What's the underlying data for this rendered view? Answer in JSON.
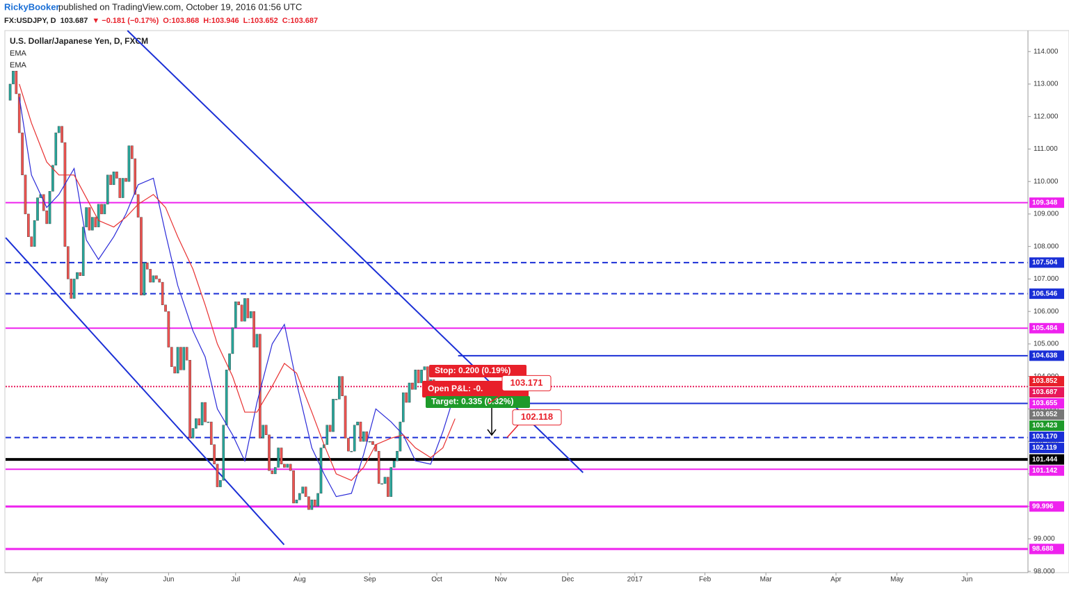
{
  "header": {
    "author": "RickyBooker",
    "published": "published on TradingView.com, October 19, 2016 01:56 UTC"
  },
  "chart_data": {
    "type": "candlestick",
    "symbol_line": {
      "symbol": "FX:USDJPY, D",
      "price": "103.687",
      "change": "▼ −0.181 (−0.17%)",
      "open": "O:103.868",
      "high": "H:103.946",
      "low": "L:103.652",
      "close": "C:103.687"
    },
    "title": "U.S. Dollar/Japanese Yen, D, FXCM",
    "up_color": "#26a69a",
    "down_color": "#ef5350",
    "closes": [
      112.5,
      113.0,
      113.4,
      112.7,
      111.5,
      110.2,
      109.0,
      108.3,
      108.0,
      108.8,
      109.5,
      109.6,
      109.1,
      108.7,
      109.7,
      110.5,
      111.5,
      111.7,
      111.2,
      108.0,
      107.0,
      106.4,
      107.0,
      107.2,
      107.1,
      108.6,
      109.2,
      108.5,
      108.9,
      108.6,
      109.3,
      109.0,
      109.3,
      110.2,
      109.9,
      110.3,
      110.1,
      109.5,
      110.1,
      110.0,
      111.1,
      110.7,
      109.6,
      108.9,
      106.5,
      107.5,
      107.3,
      106.9,
      107.1,
      107.0,
      106.9,
      106.2,
      106.0,
      104.9,
      104.3,
      104.1,
      104.9,
      104.2,
      104.9,
      104.5,
      102.1,
      102.4,
      102.7,
      102.5,
      103.2,
      102.6,
      102.6,
      101.9,
      101.3,
      100.6,
      100.8,
      102.5,
      104.2,
      104.7,
      105.5,
      106.3,
      106.2,
      105.7,
      106.4,
      105.8,
      106.0,
      104.9,
      105.3,
      102.1,
      102.5,
      102.2,
      101.1,
      101.0,
      101.2,
      101.8,
      101.3,
      101.2,
      101.3,
      101.1,
      100.1,
      100.2,
      100.4,
      100.6,
      100.3,
      99.9,
      100.2,
      100.0,
      100.4,
      101.8,
      101.9,
      102.5,
      102.3,
      103.3,
      103.3,
      104.0,
      103.4,
      102.1,
      101.7,
      101.7,
      102.5,
      102.6,
      102.0,
      102.3,
      102.0,
      102.0,
      101.9,
      101.7,
      100.7,
      100.7,
      100.9,
      100.3,
      101.2,
      101.4,
      101.7,
      102.6,
      103.5,
      103.2,
      103.8,
      103.6,
      104.2,
      103.8,
      104.2,
      104.3,
      103.5,
      103.9,
      103.7
    ],
    "emas": [
      {
        "name": "EMA",
        "color": "#2a2ad8",
        "x": [
          4,
          8,
          13,
          17,
          22,
          26,
          30,
          35,
          39,
          43,
          48,
          52,
          56,
          61,
          65,
          69,
          74,
          78,
          82,
          87,
          91,
          95,
          100,
          104,
          108,
          113,
          117,
          121,
          126,
          130,
          134,
          139,
          143,
          147
        ],
        "values": [
          112.6,
          110.2,
          109.2,
          109.6,
          110.4,
          108.2,
          107.6,
          108.3,
          109.0,
          109.9,
          110.1,
          108.4,
          106.8,
          105.4,
          104.6,
          103.0,
          102.2,
          101.4,
          103.2,
          105.0,
          105.6,
          103.8,
          101.8,
          101.0,
          100.3,
          100.4,
          101.6,
          103.0,
          102.6,
          102.2,
          101.4,
          101.3,
          102.3,
          103.5
        ]
      },
      {
        "name": "EMA",
        "color": "#e83030",
        "x": [
          4,
          8,
          13,
          17,
          22,
          26,
          30,
          35,
          39,
          43,
          48,
          52,
          56,
          61,
          65,
          69,
          74,
          78,
          82,
          87,
          91,
          95,
          100,
          104,
          108,
          113,
          117,
          121,
          126,
          130,
          134,
          139,
          143,
          147
        ],
        "values": [
          113.0,
          111.8,
          110.6,
          110.2,
          110.2,
          109.5,
          108.8,
          108.6,
          108.9,
          109.3,
          109.6,
          109.2,
          108.3,
          107.3,
          106.2,
          105.0,
          104.0,
          102.9,
          102.9,
          103.7,
          104.4,
          104.1,
          102.9,
          101.9,
          101.0,
          100.8,
          101.2,
          101.9,
          102.1,
          102.2,
          101.8,
          101.5,
          101.8,
          102.7
        ]
      }
    ],
    "xlim": [
      -0.5,
      335
    ],
    "xticks": [
      {
        "value": 10,
        "label": "Apr"
      },
      {
        "value": 31,
        "label": "May"
      },
      {
        "value": 53,
        "label": "Jun"
      },
      {
        "value": 75,
        "label": "Jul"
      },
      {
        "value": 96,
        "label": "Aug"
      },
      {
        "value": 119,
        "label": "Sep"
      },
      {
        "value": 141,
        "label": "Oct"
      },
      {
        "value": 162,
        "label": "Nov"
      },
      {
        "value": 184,
        "label": "Dec"
      },
      {
        "value": 206,
        "label": "2017"
      },
      {
        "value": 229,
        "label": "Feb"
      },
      {
        "value": 249,
        "label": "Mar"
      },
      {
        "value": 272,
        "label": "Apr"
      },
      {
        "value": 292,
        "label": "May"
      },
      {
        "value": 315,
        "label": "Jun"
      }
    ],
    "ylim": [
      97.96,
      114.646
    ],
    "yticks": [
      {
        "value": 98,
        "label": "98.000"
      },
      {
        "value": 99,
        "label": "99.000"
      },
      {
        "value": 100,
        "label": "100.000"
      },
      {
        "value": 101,
        "label": "101.000"
      },
      {
        "value": 102,
        "label": "102.000"
      },
      {
        "value": 103,
        "label": "103.000"
      },
      {
        "value": 104,
        "label": "104.000"
      },
      {
        "value": 105,
        "label": "105.000"
      },
      {
        "value": 106,
        "label": "106.000"
      },
      {
        "value": 107,
        "label": "107.000"
      },
      {
        "value": 108,
        "label": "108.000"
      },
      {
        "value": 109,
        "label": "109.000"
      },
      {
        "value": 110,
        "label": "110.000"
      },
      {
        "value": 111,
        "label": "111.000"
      },
      {
        "value": 112,
        "label": "112.000"
      },
      {
        "value": 113,
        "label": "113.000"
      },
      {
        "value": 114,
        "label": "114.000"
      }
    ],
    "levels": [
      {
        "value": 109.348,
        "label": "109.348",
        "color": "#ee22ee",
        "style": "solid",
        "width": 2
      },
      {
        "value": 107.504,
        "label": "107.504",
        "color": "#1a2fd6",
        "style": "dashed",
        "width": 2
      },
      {
        "value": 106.546,
        "label": "106.546",
        "color": "#1a2fd6",
        "style": "dashed",
        "width": 2
      },
      {
        "value": 105.484,
        "label": "105.484",
        "color": "#ee22ee",
        "style": "solid",
        "width": 2
      },
      {
        "value": 104.638,
        "label": "104.638",
        "color": "#1a2fd6",
        "style": "solid",
        "width": 2,
        "from": 148
      },
      {
        "value": 103.687,
        "label": "103.687",
        "color": "#e8185a",
        "style": "dotted",
        "width": 2
      },
      {
        "value": 103.17,
        "label": "103.170",
        "color": "#1a2fd6",
        "style": "solid",
        "width": 2,
        "from": 150
      },
      {
        "value": 102.119,
        "label": "102.119",
        "color": "#1a2fd6",
        "style": "dashed",
        "width": 2
      },
      {
        "value": 101.444,
        "label": "101.444",
        "color": "#000000",
        "style": "solid",
        "width": 4
      },
      {
        "value": 101.142,
        "label": "101.142",
        "color": "#ee22ee",
        "style": "solid",
        "width": 2
      },
      {
        "value": 99.996,
        "label": "99.996",
        "color": "#ee22ee",
        "style": "solid",
        "width": 3
      },
      {
        "value": 98.688,
        "label": "98.688",
        "color": "#ee22ee",
        "style": "solid",
        "width": 3
      }
    ],
    "price_labels": [
      {
        "value": 103.852,
        "label": "103.852",
        "color": "#e8202a"
      },
      {
        "value": 103.655,
        "label": "103.655",
        "color": "#ee22ee"
      },
      {
        "value": 103.652,
        "label": "103.652",
        "color": "#777777"
      },
      {
        "value": 103.423,
        "label": "103.423",
        "color": "#1e9a2a"
      }
    ],
    "trendlines": [
      {
        "color": "#1a2fd6",
        "points": [
          [
            39.5,
            114.646
          ],
          [
            189,
            101.04
          ]
        ]
      },
      {
        "color": "#1a2fd6",
        "points": [
          [
            -0.46,
            108.27
          ],
          [
            90.9,
            98.82
          ]
        ]
      }
    ],
    "position": {
      "stop": "Stop: 0.200 (0.19%)",
      "open_pl": "Open P&L: -0.",
      "target": "Target: 0.335 (0.32%)"
    },
    "callouts": [
      {
        "value": 103.171,
        "label": "103.171"
      },
      {
        "value": 102.118,
        "label": "102.118"
      }
    ]
  }
}
